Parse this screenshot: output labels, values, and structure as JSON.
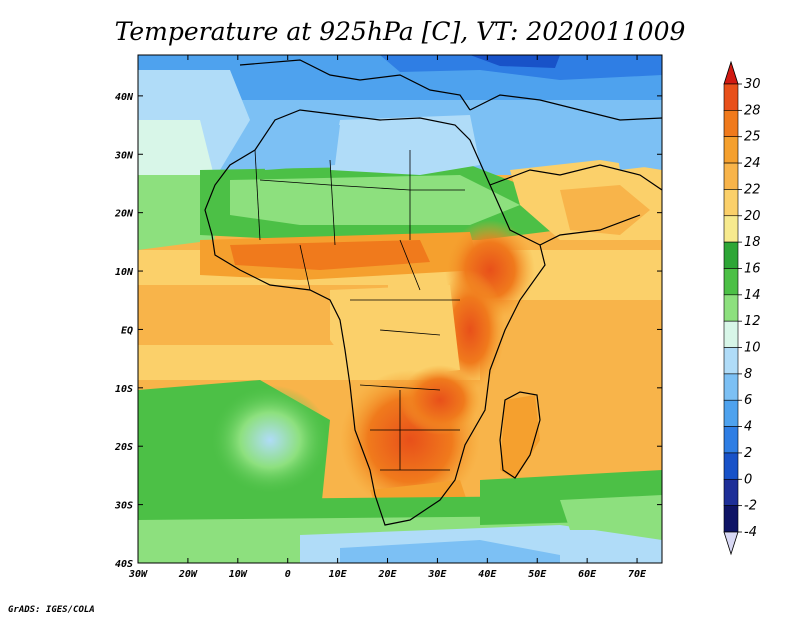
{
  "title": "Temperature at 925hPa [C], VT: 2020011009",
  "credit": "GrADS: IGES/COLA",
  "map": {
    "lon_labels": [
      "30W",
      "20W",
      "10W",
      "0",
      "10E",
      "20E",
      "30E",
      "40E",
      "50E",
      "60E",
      "70E"
    ],
    "lat_labels": [
      "40N",
      "30N",
      "20N",
      "10N",
      "EQ",
      "10S",
      "20S",
      "30S",
      "40S"
    ],
    "lon_range": [
      -30,
      75
    ],
    "lat_range": [
      -40,
      47
    ]
  },
  "colorbar": {
    "labels": [
      "30",
      "28",
      "25",
      "24",
      "22",
      "20",
      "18",
      "16",
      "14",
      "12",
      "10",
      "8",
      "6",
      "4",
      "2",
      "0",
      "-2",
      "-4"
    ],
    "colors": [
      "#e8501a",
      "#f07a1c",
      "#f5a02e",
      "#f8b44a",
      "#fbd06a",
      "#f7ea8e",
      "#2ea636",
      "#4cc046",
      "#8de07e",
      "#d8f6e8",
      "#b0dcf8",
      "#7cc0f4",
      "#4ea2ee",
      "#2f7ee4",
      "#1852c8",
      "#1e2f98",
      "#0f1466"
    ],
    "top_arrow_color": "#d11a12",
    "bottom_arrow_color": "#d8d8f4"
  }
}
